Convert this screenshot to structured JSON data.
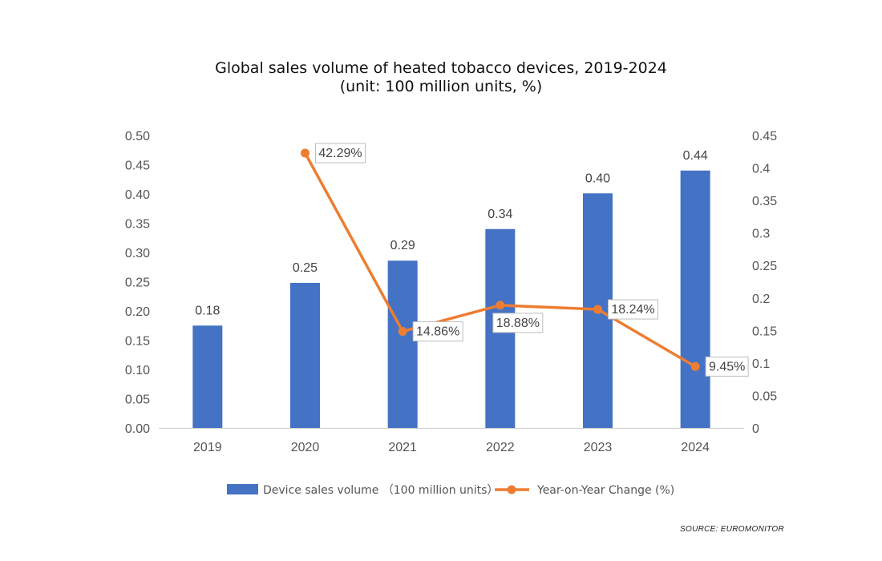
{
  "title": "Global sales volume of heated tobacco devices, 2019-2024",
  "subtitle": "(unit: 100 million units, %)",
  "source": "SOURCE: EUROMONITOR",
  "chart_data": {
    "type": "bar",
    "categories": [
      "2019",
      "2020",
      "2021",
      "2022",
      "2023",
      "2024"
    ],
    "series": [
      {
        "name": "Device sales volume （100 million units）",
        "type": "bar",
        "axis": "left",
        "color": "#4472c4",
        "values": [
          0.175,
          0.248,
          0.286,
          0.34,
          0.401,
          0.44
        ],
        "labels": [
          "0.18",
          "0.25",
          "0.29",
          "0.34",
          "0.40",
          "0.44"
        ]
      },
      {
        "name": "Year-on-Year Change (%)",
        "type": "line",
        "axis": "right",
        "color": "#ed7d31",
        "values": [
          null,
          0.4229,
          0.1486,
          0.1888,
          0.1824,
          0.0945
        ],
        "labels": [
          null,
          "42.29%",
          "14.86%",
          "18.88%",
          "18.24%",
          "9.45%"
        ]
      }
    ],
    "y_left": {
      "ylim": [
        0,
        0.5
      ],
      "ticks": [
        "0.00",
        "0.05",
        "0.10",
        "0.15",
        "0.20",
        "0.25",
        "0.30",
        "0.35",
        "0.40",
        "0.45",
        "0.50"
      ]
    },
    "y_right": {
      "ylim": [
        0,
        0.45
      ],
      "ticks": [
        "0",
        "0.05",
        "0.1",
        "0.15",
        "0.2",
        "0.25",
        "0.3",
        "0.35",
        "0.4",
        "0.45"
      ]
    },
    "grid": false,
    "legend": "bottom"
  }
}
